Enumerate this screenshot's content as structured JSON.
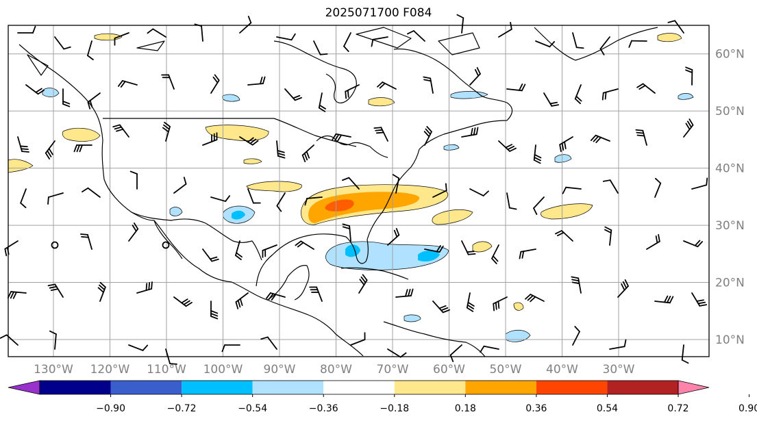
{
  "title": "2025071700 F084",
  "map": {
    "lon_range": [
      -138,
      -14
    ],
    "lat_range": [
      7,
      65
    ],
    "lon_ticks": [
      {
        "value": -130,
        "label": "130°W"
      },
      {
        "value": -120,
        "label": "120°W"
      },
      {
        "value": -110,
        "label": "110°W"
      },
      {
        "value": -100,
        "label": "100°W"
      },
      {
        "value": -90,
        "label": "90°W"
      },
      {
        "value": -80,
        "label": "80°W"
      },
      {
        "value": -70,
        "label": "70°W"
      },
      {
        "value": -60,
        "label": "60°W"
      },
      {
        "value": -50,
        "label": "50°W"
      },
      {
        "value": -40,
        "label": "40°W"
      },
      {
        "value": -30,
        "label": "30°W"
      }
    ],
    "lat_ticks": [
      {
        "value": 10,
        "label": "10°N"
      },
      {
        "value": 20,
        "label": "20°N"
      },
      {
        "value": 30,
        "label": "30°N"
      },
      {
        "value": 40,
        "label": "40°N"
      },
      {
        "value": 50,
        "label": "50°N"
      },
      {
        "value": 60,
        "label": "60°N"
      }
    ],
    "colors": {
      "background": "#ffffff",
      "grid": "#a0a0a0",
      "coastline": "#000000",
      "frame": "#000000",
      "tick_label": "#808080"
    }
  },
  "colorbar": {
    "levels": [
      "−0.90",
      "−0.72",
      "−0.54",
      "−0.36",
      "−0.18",
      "0.18",
      "0.36",
      "0.54",
      "0.72",
      "0.90"
    ],
    "colors": [
      "#9932cc",
      "#00008b",
      "#3a5fcd",
      "#00bfff",
      "#b0e2ff",
      "#ffffff",
      "#ffe88c",
      "#ffa500",
      "#ff4500",
      "#b22222",
      "#ff82ab"
    ]
  }
}
